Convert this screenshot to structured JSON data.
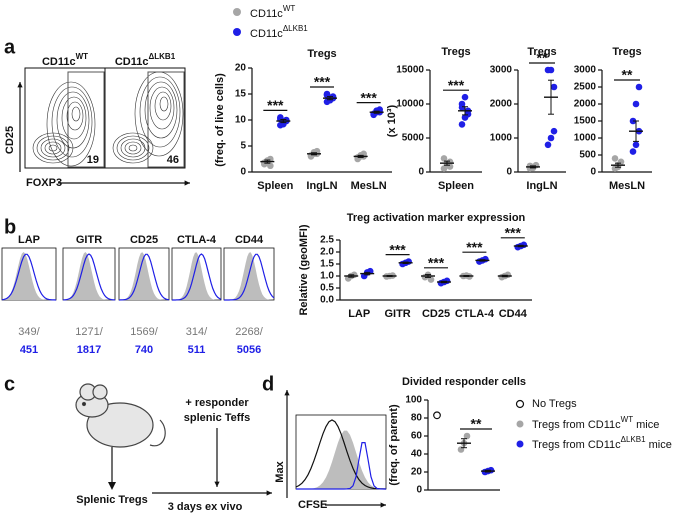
{
  "panels": [
    "a",
    "b",
    "c",
    "d"
  ],
  "legend": [
    {
      "label": "CD11c",
      "sup": "WT",
      "color": "#a6a6a6"
    },
    {
      "label": "CD11c",
      "sup": "ΔLKB1",
      "color": "#1f1fe6"
    }
  ],
  "flow_a": {
    "titles": [
      {
        "label": "CD11c",
        "sup": "WT"
      },
      {
        "label": "CD11c",
        "sup": "ΔLKB1"
      }
    ],
    "y_label": "CD25",
    "x_label": "FOXP3",
    "gates": [
      19,
      46
    ]
  },
  "histograms_b": {
    "separator": "/",
    "items": [
      {
        "marker": "LAP",
        "wt": 349,
        "ko": 451
      },
      {
        "marker": "GITR",
        "wt": 1271,
        "ko": 1817
      },
      {
        "marker": "CD25",
        "wt": 1569,
        "ko": 740
      },
      {
        "marker": "CTLA-4",
        "wt": 314,
        "ko": 511
      },
      {
        "marker": "CD44",
        "wt": 2268,
        "ko": 5056
      }
    ]
  },
  "schematic": {
    "step1": "Splenic Tregs",
    "step2": [
      "+ responder",
      "splenic Teffs"
    ],
    "duration": "3 days ex vivo"
  },
  "cfse_histogram": {
    "y_label": "Max",
    "x_label": "CFSE"
  },
  "legend_d": [
    {
      "label": "No Tregs"
    },
    {
      "label": "Tregs from CD11c",
      "sup": "WT",
      "tail": " mice"
    },
    {
      "label": "Tregs from CD11c",
      "sup": "ΔLKB1",
      "tail": " mice"
    }
  ],
  "chart_data": [
    {
      "type": "dot",
      "title": "Tregs",
      "y_label": "(freq. of live cells)",
      "categories": [
        "Spleen",
        "IngLN",
        "MesLN"
      ],
      "ylim": [
        0,
        20
      ],
      "yticks": [
        0,
        5,
        10,
        15,
        20
      ],
      "significance": [
        "***",
        "***",
        "***"
      ],
      "series": [
        {
          "color": "#a6a6a6",
          "values": [
            [
              1.5,
              2,
              2.5,
              1.8,
              2.2,
              1.2
            ],
            [
              3,
              3.5,
              4,
              3.2,
              3.8,
              3.5
            ],
            [
              2.5,
              3,
              3.5,
              2.8,
              3.2,
              3
            ]
          ],
          "means": [
            2,
            3.5,
            3
          ],
          "sems": [
            0.3,
            0.2,
            0.2
          ]
        },
        {
          "color": "#1f1fe6",
          "values": [
            [
              9,
              9.5,
              10,
              10.5,
              9.2,
              9.8,
              10.2
            ],
            [
              13.5,
              14,
              14.5,
              15,
              13.8,
              14.2,
              14.8
            ],
            [
              11,
              11.5,
              12,
              11.2,
              11.8,
              11.5
            ]
          ],
          "means": [
            9.8,
            14.2,
            11.5
          ],
          "sems": [
            0.3,
            0.3,
            0.2
          ]
        }
      ]
    },
    {
      "type": "dot",
      "title": "Tregs",
      "y_label": "(x 10³)",
      "categories": [
        "Spleen"
      ],
      "ylim": [
        0,
        15000
      ],
      "yticks": [
        0,
        5000,
        10000,
        15000
      ],
      "significance": [
        "***"
      ],
      "series": [
        {
          "color": "#a6a6a6",
          "values": [
            [
              500,
              1000,
              1500,
              2000,
              1200,
              800
            ]
          ],
          "means": [
            1300
          ],
          "sems": [
            300
          ]
        },
        {
          "color": "#1f1fe6",
          "values": [
            [
              7000,
              8000,
              9000,
              10000,
              11000,
              8500,
              9500
            ]
          ],
          "means": [
            9000
          ],
          "sems": [
            600
          ]
        }
      ]
    },
    {
      "type": "dot",
      "title": "Tregs",
      "categories": [
        "IngLN"
      ],
      "ylim": [
        0,
        3000
      ],
      "yticks": [
        0,
        1000,
        2000,
        3000
      ],
      "significance": [
        "**"
      ],
      "series": [
        {
          "color": "#a6a6a6",
          "values": [
            [
              100,
              150,
              200,
              180,
              120
            ]
          ],
          "means": [
            150
          ],
          "sems": [
            30
          ]
        },
        {
          "color": "#1f1fe6",
          "values": [
            [
              800,
              1000,
              2500,
              3000,
              3000,
              1200
            ]
          ],
          "means": [
            2200
          ],
          "sems": [
            500
          ]
        }
      ]
    },
    {
      "type": "dot",
      "title": "Tregs",
      "categories": [
        "MesLN"
      ],
      "ylim": [
        0,
        3000
      ],
      "yticks": [
        0,
        500,
        1000,
        1500,
        2000,
        2500,
        3000
      ],
      "significance": [
        "**"
      ],
      "series": [
        {
          "color": "#a6a6a6",
          "values": [
            [
              100,
              200,
              300,
              400,
              150
            ]
          ],
          "means": [
            200
          ],
          "sems": [
            60
          ]
        },
        {
          "color": "#1f1fe6",
          "values": [
            [
              600,
              800,
              1200,
              1500,
              2000,
              2500
            ]
          ],
          "means": [
            1200
          ],
          "sems": [
            300
          ]
        }
      ]
    },
    {
      "type": "dot",
      "title": "Treg activation marker expression",
      "y_label": "Relative (geoMFI)",
      "categories": [
        "LAP",
        "GITR",
        "CD25",
        "CTLA-4",
        "CD44"
      ],
      "ylim": [
        0,
        2.5
      ],
      "yticks": [
        {
          "value": 0,
          "label": "0.0"
        },
        0.5,
        {
          "value": 1,
          "label": "1.0"
        },
        1.5,
        {
          "value": 2,
          "label": "2.0"
        },
        2.5
      ],
      "significance": [
        null,
        "***",
        "***",
        "***",
        "***"
      ],
      "series": [
        {
          "color": "#a6a6a6",
          "values": [
            [
              0.9,
              1,
              1.05
            ],
            [
              0.98,
              1,
              1.02
            ],
            [
              0.95,
              1.05,
              0.85
            ],
            [
              1,
              1.02,
              0.98
            ],
            [
              0.95,
              1,
              1.05
            ]
          ],
          "means": [
            1,
            1,
            1,
            1,
            1
          ],
          "sems": [
            0.05,
            0.02,
            0.06,
            0.02,
            0.03
          ]
        },
        {
          "color": "#1f1fe6",
          "values": [
            [
              1,
              1.15,
              1.2
            ],
            [
              1.5,
              1.55,
              1.6
            ],
            [
              0.7,
              0.75,
              0.8
            ],
            [
              1.6,
              1.65,
              1.7
            ],
            [
              2.2,
              2.25,
              2.3
            ]
          ],
          "means": [
            1.1,
            1.55,
            0.75,
            1.65,
            2.25
          ],
          "sems": [
            0.05,
            0.03,
            0.03,
            0.03,
            0.03
          ]
        }
      ]
    },
    {
      "type": "dot",
      "title": "Divided responder cells",
      "y_label": "(freq. of parent)",
      "ylim": [
        0,
        100
      ],
      "yticks": [
        0,
        20,
        40,
        60,
        80,
        100
      ],
      "significance": [
        "**"
      ],
      "series": [
        {
          "color": "#111111",
          "marker": "open",
          "values": [
            [
              83
            ]
          ]
        },
        {
          "color": "#a6a6a6",
          "values": [
            [
              45,
              52,
              60
            ]
          ],
          "means": [
            52
          ],
          "sems": [
            5
          ]
        },
        {
          "color": "#1f1fe6",
          "values": [
            [
              20,
              21,
              22
            ]
          ],
          "means": [
            21
          ],
          "sems": [
            1
          ]
        }
      ]
    }
  ]
}
